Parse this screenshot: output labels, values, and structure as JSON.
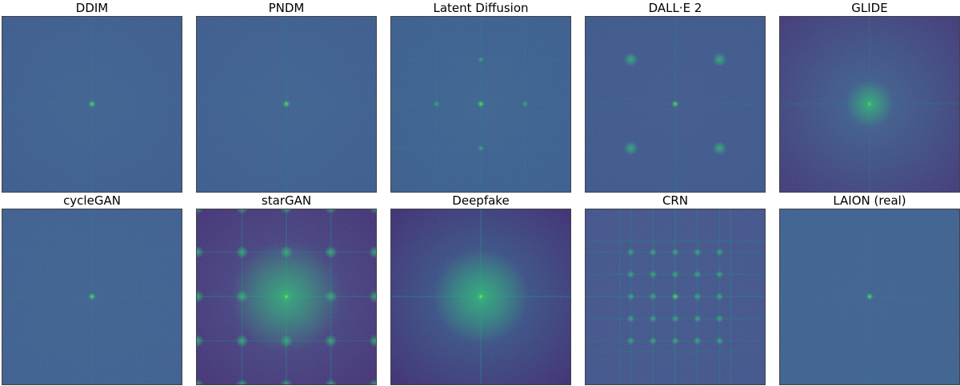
{
  "panels": [
    {
      "title": "DDIM",
      "style": "plain",
      "base": "#3a5b8c",
      "edge": "#36548a"
    },
    {
      "title": "PNDM",
      "style": "plain",
      "base": "#3a5b8c",
      "edge": "#36548a"
    },
    {
      "title": "Latent Diffusion",
      "style": "grid4",
      "base": "#375d8c",
      "edge": "#34568a"
    },
    {
      "title": "DALL·E 2",
      "style": "dalle",
      "base": "#3b5289",
      "edge": "#385088"
    },
    {
      "title": "GLIDE",
      "style": "glide",
      "base": "#3a5f8c",
      "edge": "#3d2d72"
    },
    {
      "title": "cycleGAN",
      "style": "grid2",
      "base": "#3a5b8c",
      "edge": "#38578b"
    },
    {
      "title": "starGAN",
      "style": "stargan",
      "base": "#444a86",
      "edge": "#40266f"
    },
    {
      "title": "Deepfake",
      "style": "deepfake",
      "base": "#33618c",
      "edge": "#3b1f6c"
    },
    {
      "title": "CRN",
      "style": "crn",
      "base": "#3e4f88",
      "edge": "#3d4c87"
    },
    {
      "title": "LAION (real)",
      "style": "plain",
      "base": "#3a5b8c",
      "edge": "#385a8b"
    }
  ],
  "colors": {
    "peak": "#b5de2b",
    "bright": "#35b779",
    "line": "#21918c"
  }
}
